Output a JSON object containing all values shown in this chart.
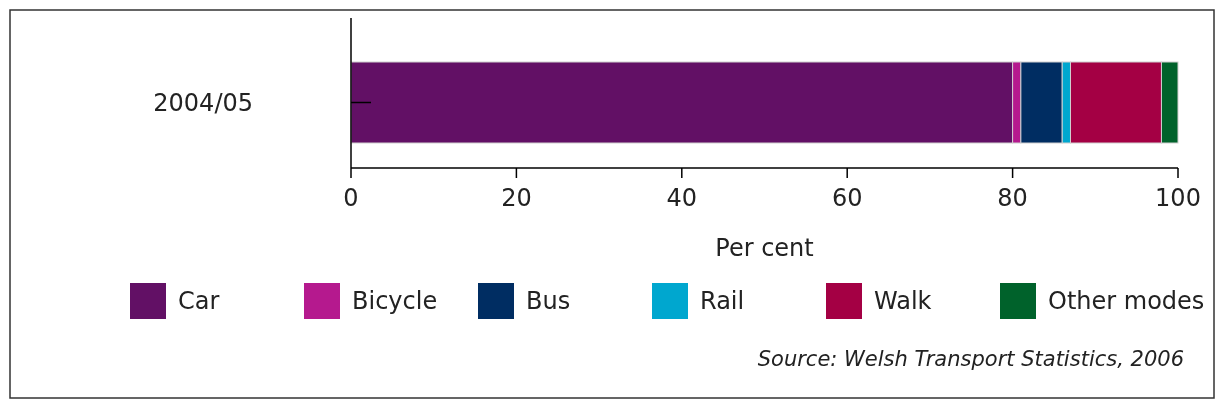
{
  "chart_data": {
    "type": "bar",
    "orientation": "horizontal",
    "stacked": true,
    "categories": [
      "2004/05"
    ],
    "series": [
      {
        "name": "Car",
        "color": "#621065",
        "values": [
          80
        ]
      },
      {
        "name": "Bicycle",
        "color": "#b5198e",
        "values": [
          1
        ]
      },
      {
        "name": "Bus",
        "color": "#002d62",
        "values": [
          5
        ]
      },
      {
        "name": "Rail",
        "color": "#00a7cf",
        "values": [
          1
        ]
      },
      {
        "name": "Walk",
        "color": "#a40044",
        "values": [
          11
        ]
      },
      {
        "name": "Other modes",
        "color": "#00622b",
        "values": [
          2
        ]
      }
    ],
    "xlim": [
      0,
      100
    ],
    "xticks": [
      0,
      20,
      40,
      60,
      80,
      100
    ],
    "xlabel": "Per cent",
    "legend": "bottom",
    "grid": false,
    "annotations": [
      "Source: Welsh Transport Statistics, 2006"
    ]
  }
}
